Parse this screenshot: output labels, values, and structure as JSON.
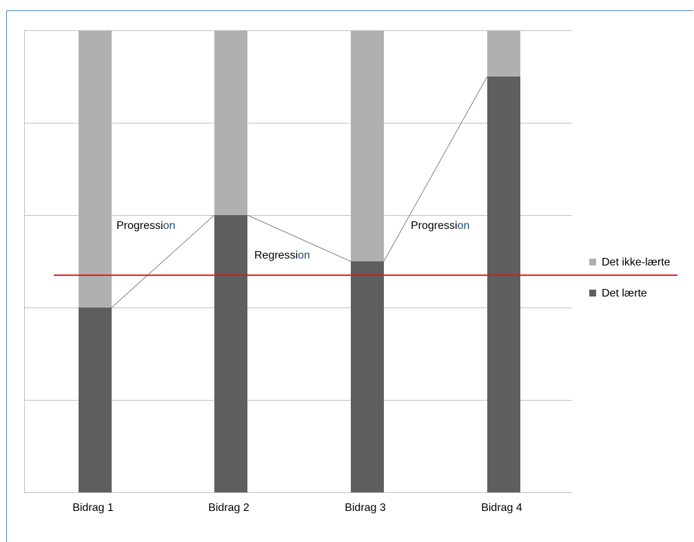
{
  "chart_data": {
    "type": "bar",
    "stacked": true,
    "categories": [
      "Bidrag 1",
      "Bidrag 2",
      "Bidrag 3",
      "Bidrag 4"
    ],
    "series": [
      {
        "name": "Det lærte",
        "values": [
          2,
          3,
          2.5,
          4.5
        ],
        "color": "#5f5f5f"
      },
      {
        "name": "Det ikke-lærte",
        "values": [
          3,
          2,
          2.5,
          0.5
        ],
        "color": "#b0b0b0"
      }
    ],
    "ylim": [
      0,
      5
    ],
    "y_gridlines": [
      0,
      1,
      2,
      3,
      4,
      5
    ],
    "grid": true,
    "reference_line": {
      "value": 2.35,
      "color": "#e8151b"
    },
    "connector_line": {
      "color": "#7f7f7f"
    },
    "annotations": [
      {
        "head": "Progressi",
        "tail": "on",
        "between": [
          "Bidrag 1",
          "Bidrag 2"
        ]
      },
      {
        "head": "Regressi",
        "tail": "on",
        "between": [
          "Bidrag 2",
          "Bidrag 3"
        ]
      },
      {
        "head": "Progressi",
        "tail": "on",
        "between": [
          "Bidrag 3",
          "Bidrag 4"
        ]
      }
    ],
    "legend_position": "right",
    "xlabel": "",
    "ylabel": ""
  }
}
